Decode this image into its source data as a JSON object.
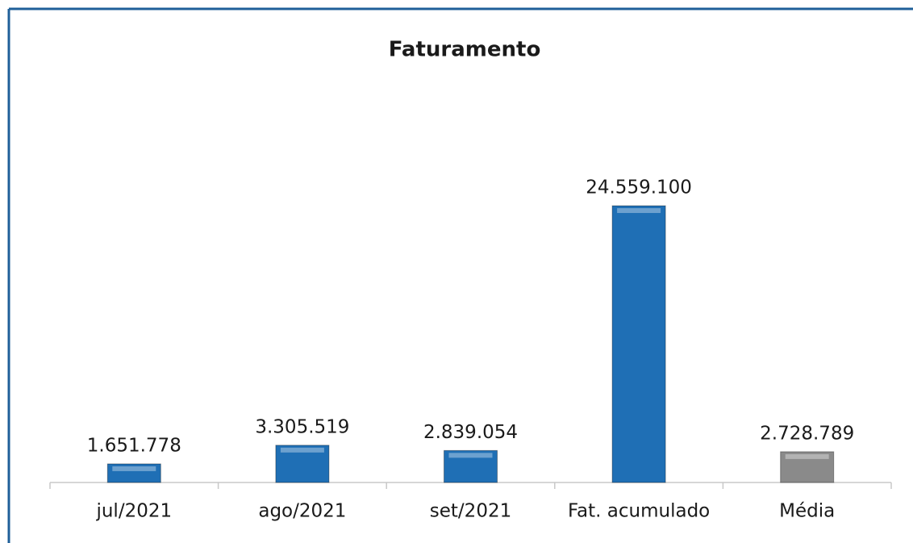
{
  "chart_data": {
    "type": "bar",
    "title": "Faturamento",
    "categories": [
      "jul/2021",
      "ago/2021",
      "set/2021",
      "Fat. acumulado",
      "Média"
    ],
    "values": [
      1651778,
      3305519,
      2839054,
      24559100,
      2728789
    ],
    "value_labels": [
      "1.651.778",
      "3.305.519",
      "2.839.054",
      "24.559.100",
      "2.728.789"
    ],
    "colors": [
      "#1f6fb5",
      "#1f6fb5",
      "#1f6fb5",
      "#1f6fb5",
      "#8a8a8a"
    ],
    "ylim": [
      0,
      30000000
    ]
  }
}
